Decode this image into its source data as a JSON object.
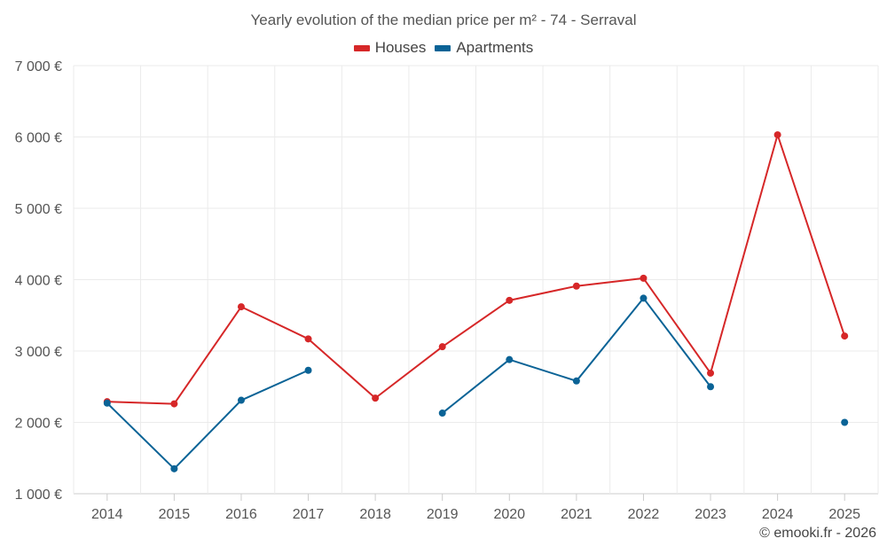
{
  "chart_data": {
    "type": "line",
    "title": "Yearly evolution of the median price per m² - 74 - Serraval",
    "xlabel": "",
    "ylabel": "",
    "categories": [
      "2014",
      "2015",
      "2016",
      "2017",
      "2018",
      "2019",
      "2020",
      "2021",
      "2022",
      "2023",
      "2024",
      "2025"
    ],
    "ylim": [
      1000,
      7000
    ],
    "yticks": [
      1000,
      2000,
      3000,
      4000,
      5000,
      6000,
      7000
    ],
    "ytick_labels": [
      "1 000 €",
      "2 000 €",
      "3 000 €",
      "4 000 €",
      "5 000 €",
      "6 000 €",
      "7 000 €"
    ],
    "grid": true,
    "legend_position": "top-center",
    "series": [
      {
        "name": "Houses",
        "color": "#d62728",
        "values": [
          2290,
          2260,
          3620,
          3170,
          2340,
          3060,
          3710,
          3910,
          4020,
          2690,
          6030,
          3210
        ]
      },
      {
        "name": "Apartments",
        "color": "#0a6396",
        "values": [
          2270,
          1350,
          2310,
          2730,
          null,
          2130,
          2880,
          2580,
          3740,
          2500,
          null,
          2000
        ]
      }
    ]
  },
  "credit": "© emooki.fr - 2026"
}
